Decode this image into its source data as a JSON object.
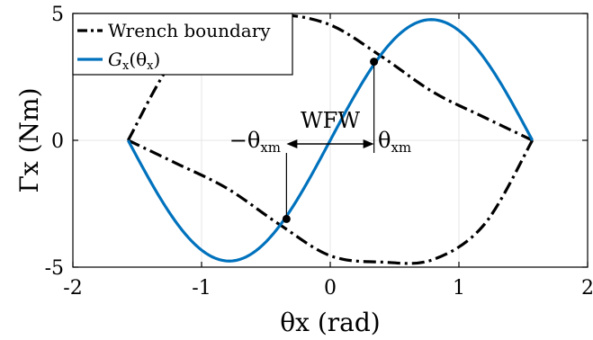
{
  "chart_data": {
    "type": "line",
    "title": "",
    "xlabel": "θx (rad)",
    "ylabel": "Γx (Nm)",
    "xlim": [
      -2,
      2
    ],
    "ylim": [
      -5,
      5
    ],
    "xticks": [
      -2,
      -1,
      0,
      1,
      2
    ],
    "yticks": [
      -5,
      0,
      5
    ],
    "xtick_labels": [
      "-2",
      "-1",
      "0",
      "1",
      "2"
    ],
    "ytick_labels": [
      "-5",
      "0",
      "5"
    ],
    "grid": true,
    "legend_position": "top-left",
    "series": [
      {
        "name": "Wrench boundary",
        "style": "dash-dot",
        "color": "#000000",
        "upper": {
          "x": [
            -1.571,
            -1.2,
            -0.8,
            -0.4,
            0.0,
            0.4,
            0.8,
            1.2,
            1.571
          ],
          "y": [
            0.0,
            3.3,
            4.7,
            4.95,
            4.55,
            3.3,
            1.9,
            0.9,
            0.0
          ]
        },
        "lower": {
          "x": [
            -1.571,
            -1.2,
            -0.8,
            -0.4,
            0.0,
            0.4,
            0.8,
            1.2,
            1.571
          ],
          "y": [
            0.0,
            -0.9,
            -1.9,
            -3.3,
            -4.55,
            -4.8,
            -4.7,
            -3.3,
            0.0
          ]
        }
      },
      {
        "name": "Gx(θx)",
        "name_main": "G",
        "name_sub": "x",
        "name_arg": "(θ",
        "name_arg_sub": "x",
        "name_close": ")",
        "style": "solid",
        "color": "#0072bd",
        "function": "4.76*sin(2*x)",
        "x_range": [
          -1.571,
          1.571
        ]
      }
    ],
    "annotations": {
      "region_label": "WFW",
      "left_label_main": "−θ",
      "left_label_sub": "xm",
      "right_label_main": "θ",
      "right_label_sub": "xm",
      "theta_xm": 0.34,
      "marked_points": [
        {
          "x": -0.34,
          "y": -3.1
        },
        {
          "x": 0.34,
          "y": 3.1
        }
      ]
    },
    "colors": {
      "boundary": "#000000",
      "curve": "#0072bd",
      "grid": "#e6e6e6"
    }
  }
}
